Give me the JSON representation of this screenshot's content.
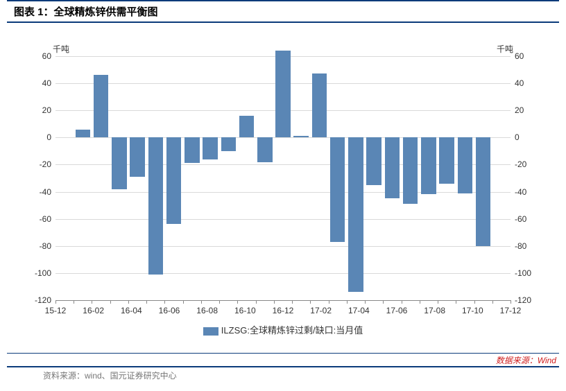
{
  "title": "图表 1：全球精炼锌供需平衡图",
  "chart": {
    "type": "bar",
    "y_axis_title_left": "千吨",
    "y_axis_title_right": "千吨",
    "ylim": [
      -120,
      60
    ],
    "ytick_step": 20,
    "yticks": [
      60,
      40,
      20,
      0,
      -20,
      -40,
      -60,
      -80,
      -100,
      -120
    ],
    "bar_color": "#5a86b5",
    "grid_color": "#d9d9d9",
    "background_color": "#ffffff",
    "text_color": "#333333",
    "label_fontsize": 12,
    "legend_label": "ILZSG:全球精炼锌过剩/缺口:当月值",
    "x_tick_labels": [
      "15-12",
      "16-02",
      "16-04",
      "16-06",
      "16-08",
      "16-10",
      "16-12",
      "17-02",
      "17-04",
      "17-06",
      "17-08",
      "17-10",
      "17-12"
    ],
    "values": [
      6,
      46,
      -38,
      -29,
      -101,
      -64,
      -19,
      -16,
      -10,
      16,
      -18,
      64,
      1,
      47,
      -77,
      -114,
      -35,
      -45,
      -49,
      -42,
      -34,
      -41,
      -80
    ]
  },
  "source_right": "数据来源：Wind",
  "source_left": "资料来源：wind、国元证券研究中心"
}
